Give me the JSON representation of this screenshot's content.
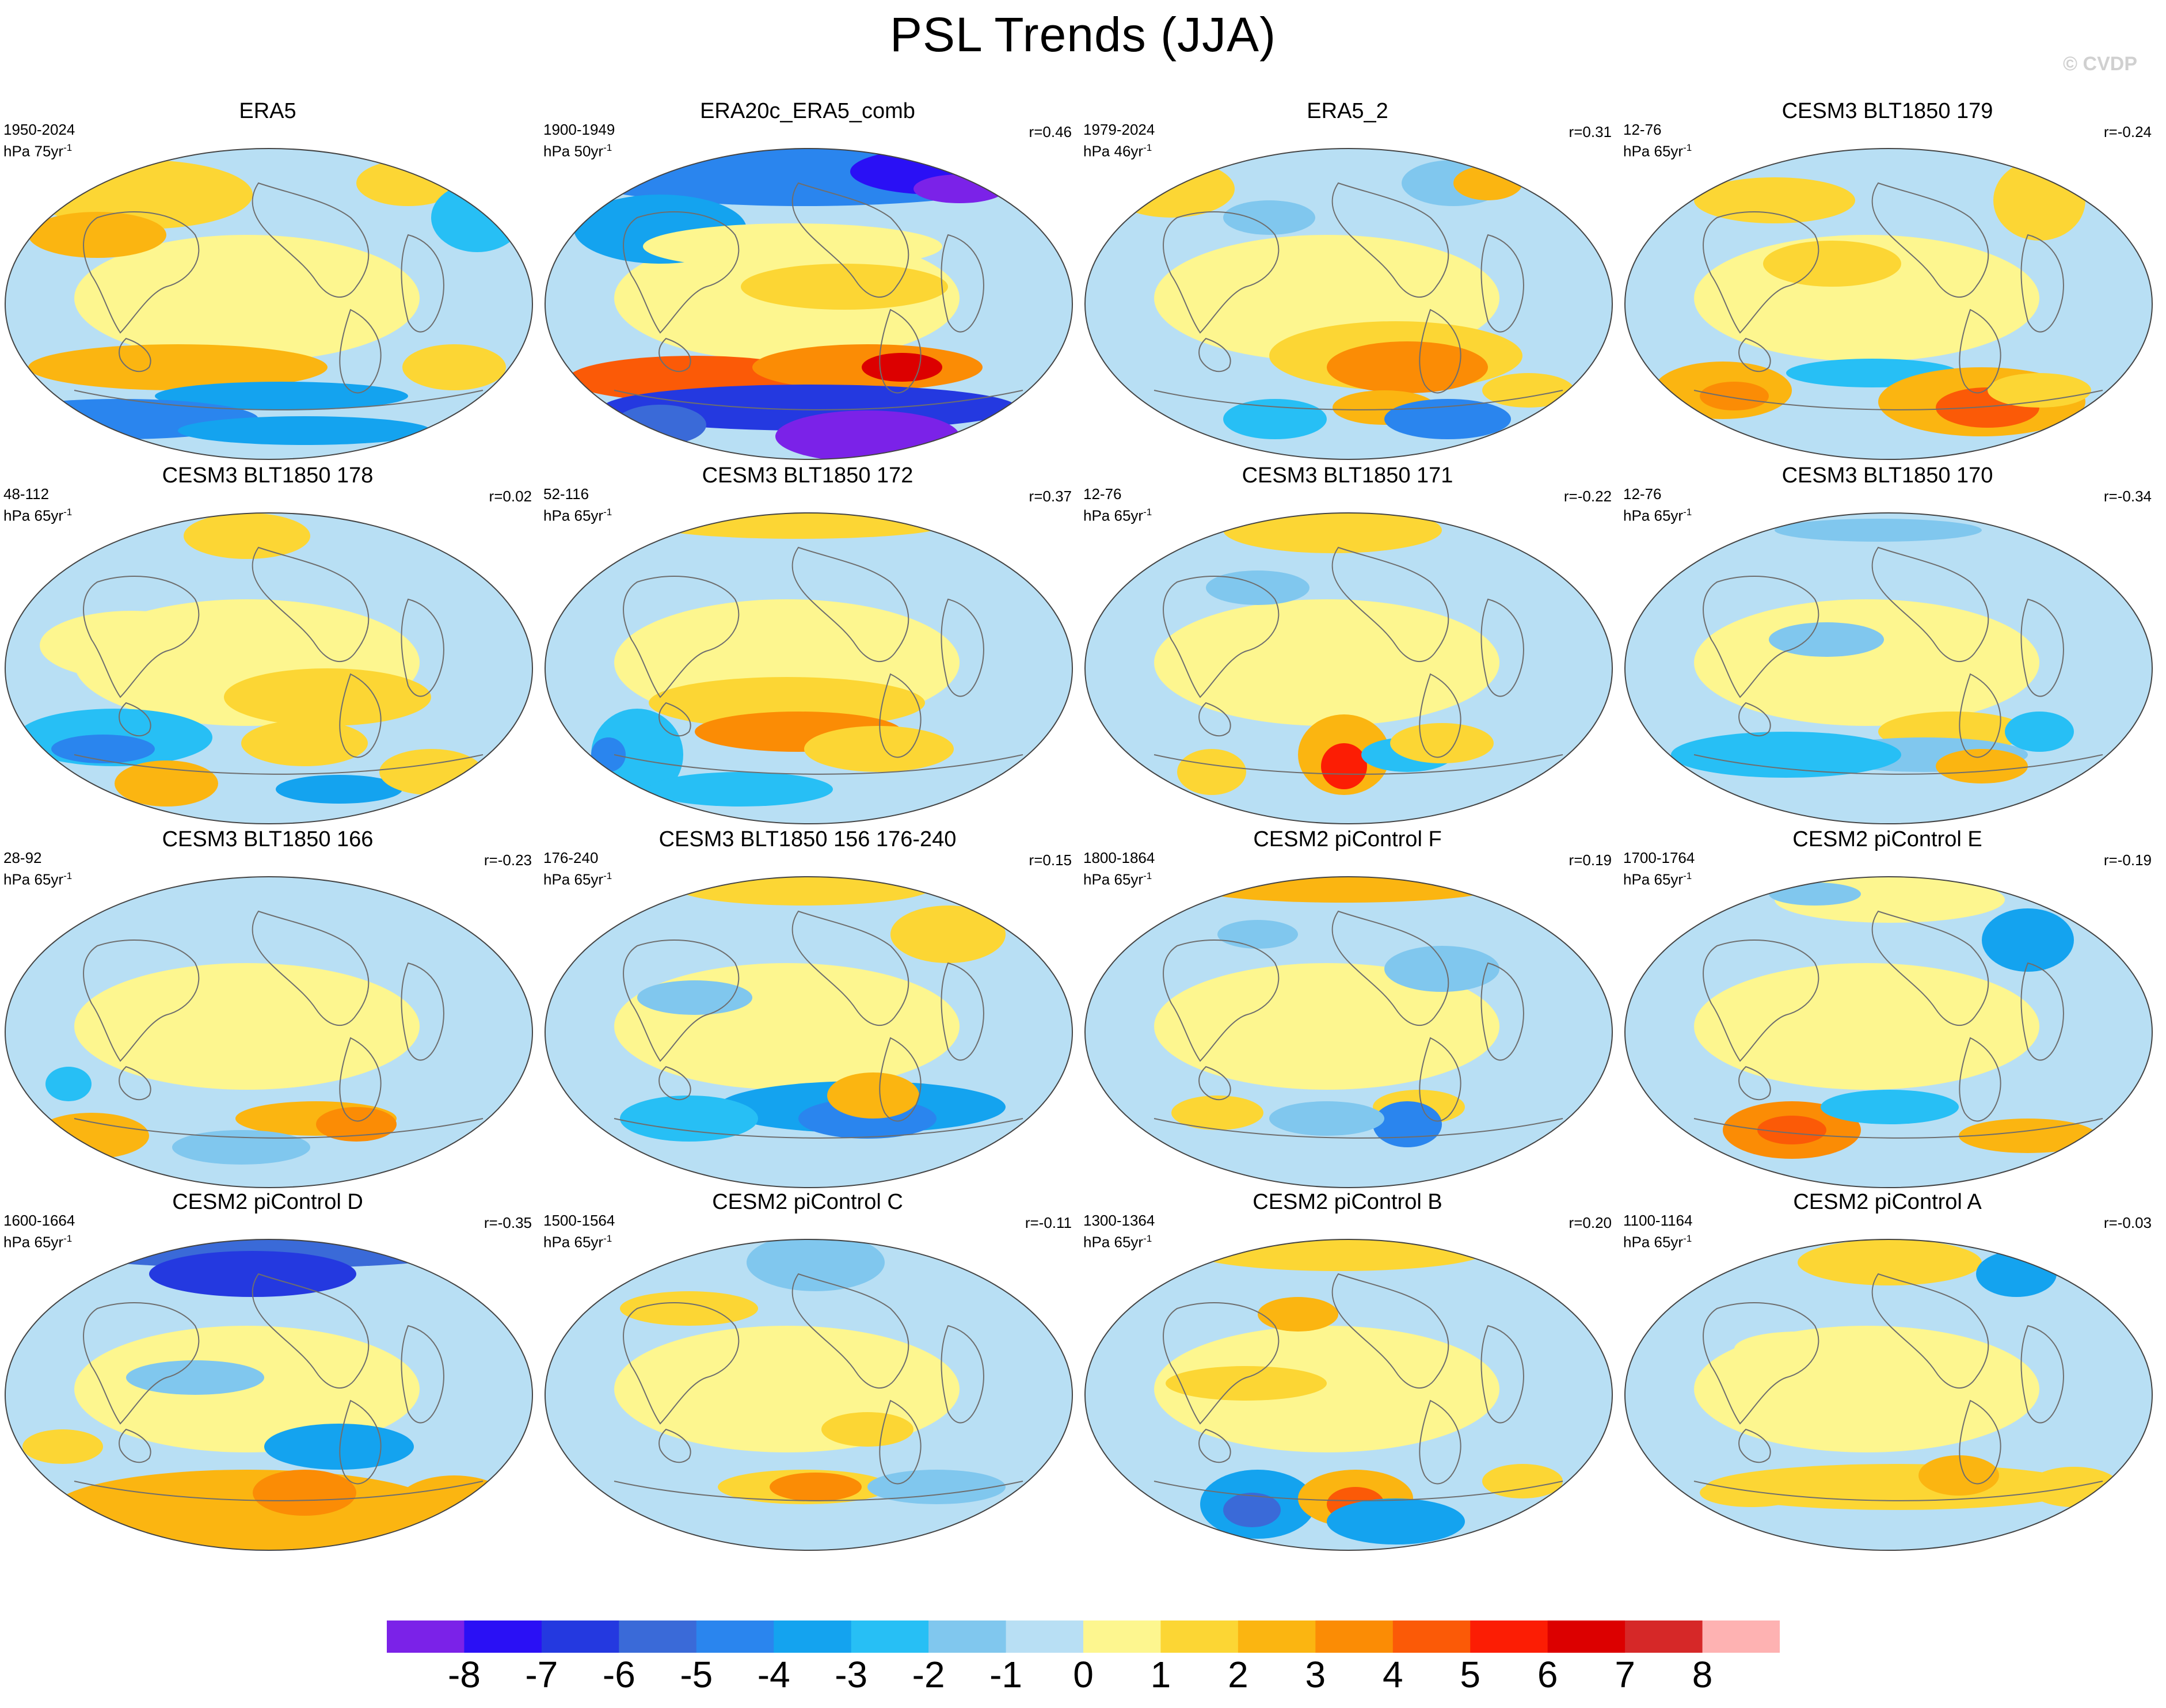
{
  "title": "PSL Trends (JJA)",
  "watermark": "© CVDP",
  "unit_label": "hPa",
  "panels": [
    {
      "title": "ERA5",
      "period": "1950-2024",
      "trend_unit": "75yr",
      "corr": ""
    },
    {
      "title": "ERA20c_ERA5_comb",
      "period": "1900-1949",
      "trend_unit": "50yr",
      "corr": "r=0.46"
    },
    {
      "title": "ERA5_2",
      "period": "1979-2024",
      "trend_unit": "46yr",
      "corr": "r=0.31"
    },
    {
      "title": "CESM3 BLT1850 179",
      "period": "12-76",
      "trend_unit": "65yr",
      "corr": "r=-0.24"
    },
    {
      "title": "CESM3 BLT1850 178",
      "period": "48-112",
      "trend_unit": "65yr",
      "corr": "r=0.02"
    },
    {
      "title": "CESM3 BLT1850 172",
      "period": "52-116",
      "trend_unit": "65yr",
      "corr": "r=0.37"
    },
    {
      "title": "CESM3 BLT1850 171",
      "period": "12-76",
      "trend_unit": "65yr",
      "corr": "r=-0.22"
    },
    {
      "title": "CESM3 BLT1850 170",
      "period": "12-76",
      "trend_unit": "65yr",
      "corr": "r=-0.34"
    },
    {
      "title": "CESM3 BLT1850 166",
      "period": "28-92",
      "trend_unit": "65yr",
      "corr": "r=-0.23"
    },
    {
      "title": "CESM3 BLT1850 156 176-240",
      "period": "176-240",
      "trend_unit": "65yr",
      "corr": "r=0.15"
    },
    {
      "title": "CESM2 piControl F",
      "period": "1800-1864",
      "trend_unit": "65yr",
      "corr": "r=0.19"
    },
    {
      "title": "CESM2 piControl E",
      "period": "1700-1764",
      "trend_unit": "65yr",
      "corr": "r=-0.19"
    },
    {
      "title": "CESM2 piControl D",
      "period": "1600-1664",
      "trend_unit": "65yr",
      "corr": "r=-0.35"
    },
    {
      "title": "CESM2 piControl C",
      "period": "1500-1564",
      "trend_unit": "65yr",
      "corr": "r=-0.11"
    },
    {
      "title": "CESM2 piControl B",
      "period": "1300-1364",
      "trend_unit": "65yr",
      "corr": "r=0.20"
    },
    {
      "title": "CESM2 piControl A",
      "period": "1100-1164",
      "trend_unit": "65yr",
      "corr": "r=-0.03"
    }
  ],
  "colorbar": {
    "labels": [
      "-8",
      "-7",
      "-6",
      "-5",
      "-4",
      "-3",
      "-2",
      "-1",
      "0",
      "1",
      "2",
      "3",
      "4",
      "5",
      "6",
      "7",
      "8"
    ],
    "colors": [
      "#7b22e8",
      "#2a10f5",
      "#2439e0",
      "#3a6ad8",
      "#2a85ee",
      "#14a3ef",
      "#27bff5",
      "#80c7ee",
      "#b8dff4",
      "#fdf68f",
      "#fcd634",
      "#fbb511",
      "#fb8c05",
      "#fb5a07",
      "#fc1d04",
      "#dc0000",
      "#d62828",
      "#feb2b2"
    ]
  },
  "ocean_color": "#b8dff4",
  "coast_color": "#6e6e6e"
}
